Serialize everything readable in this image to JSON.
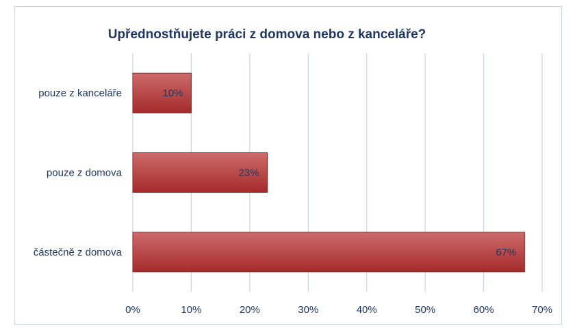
{
  "chart_data": {
    "type": "bar",
    "orientation": "horizontal",
    "title": "Upřednostňujete práci z domova nebo z kanceláře?",
    "categories": [
      "pouze z kanceláře",
      "pouze z domova",
      "částečně z domova"
    ],
    "values": [
      10,
      23,
      67
    ],
    "value_labels": [
      "10%",
      "23%",
      "67%"
    ],
    "xlim": [
      0,
      70
    ],
    "x_ticks": [
      0,
      10,
      20,
      30,
      40,
      50,
      60,
      70
    ],
    "x_tick_labels": [
      "0%",
      "10%",
      "20%",
      "30%",
      "40%",
      "50%",
      "60%",
      "70%"
    ],
    "grid": true,
    "legend": "none",
    "colors": {
      "bar_top": "#cd6b6b",
      "bar_bottom": "#a52a2a",
      "text": "#1f3864",
      "grid": "#c5d5e8"
    }
  }
}
